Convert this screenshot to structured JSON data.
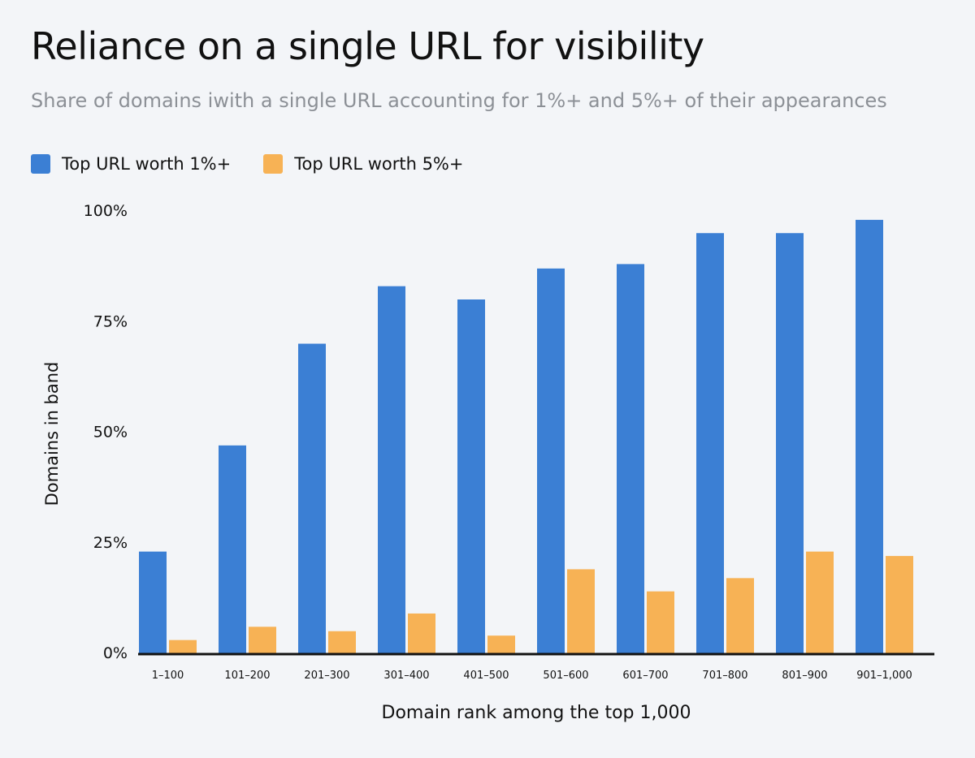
{
  "colors": {
    "background": "#f3f5f8",
    "series_1pct": "#3b7fd4",
    "series_5pct": "#f7b255",
    "text": "#111111",
    "subtitle": "#8c9096"
  },
  "chart_data": {
    "type": "bar",
    "title": "Reliance on a single URL for visibility",
    "subtitle": "Share of domains iwith a single URL accounting for 1%+ and 5%+ of their appearances",
    "xlabel": "Domain rank among the top 1,000",
    "ylabel": "Domains in band",
    "ylim": [
      0,
      100
    ],
    "yticks": [
      0,
      25,
      50,
      75,
      100
    ],
    "ytick_labels": [
      "0%",
      "25%",
      "50%",
      "75%",
      "100%"
    ],
    "grid": false,
    "legend_position": "top-left",
    "categories": [
      "1–100",
      "101–200",
      "201–300",
      "301–400",
      "401–500",
      "501–600",
      "601–700",
      "701–800",
      "801–900",
      "901–1,000"
    ],
    "series": [
      {
        "name": "Top URL worth 1%+",
        "color": "#3b7fd4",
        "values": [
          23,
          47,
          70,
          83,
          80,
          87,
          88,
          95,
          95,
          98
        ]
      },
      {
        "name": "Top URL worth 5%+",
        "color": "#f7b255",
        "values": [
          3,
          6,
          5,
          9,
          4,
          19,
          14,
          17,
          23,
          22
        ]
      }
    ]
  }
}
